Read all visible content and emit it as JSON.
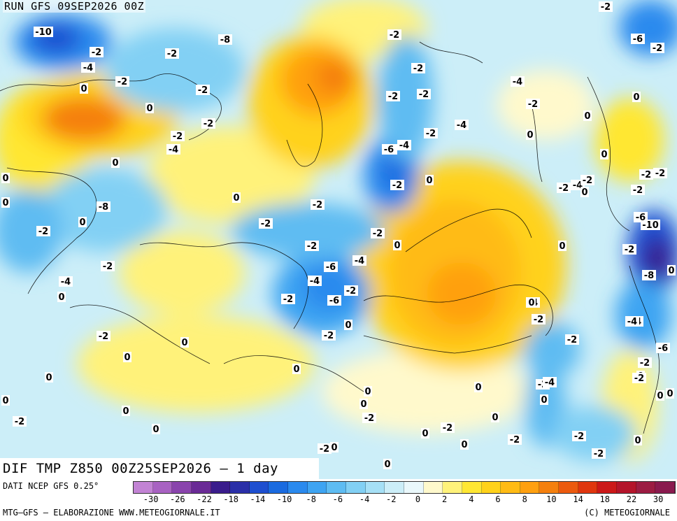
{
  "header": {
    "run": "RUN GFS 09SEP2026 00Z"
  },
  "title": "DIF TMP Z850 00Z25SEP2026 – 1 day",
  "footer": {
    "source": "DATI NCEP GFS 0.25°",
    "credit": "MTG–GFS – ELABORAZIONE WWW.METEOGIORNALE.IT",
    "copyright": "(C) METEOGIORNALE"
  },
  "legend": {
    "colors": [
      "#c283d4",
      "#a862c2",
      "#8a44ad",
      "#6a2a96",
      "#3a1c8c",
      "#2a2fa8",
      "#1e4fd0",
      "#1a6be0",
      "#2a8aee",
      "#3ea4f2",
      "#5ebcf2",
      "#82d0f4",
      "#a6e0f6",
      "#cceef8",
      "#eaf8fb",
      "#fff9cc",
      "#fff27a",
      "#ffe733",
      "#ffd21a",
      "#ffbb14",
      "#ffa010",
      "#f5800e",
      "#ec5a0e",
      "#e0360e",
      "#cc1818",
      "#b4142a",
      "#9c1c42",
      "#8a1a4e"
    ],
    "tick_labels": [
      "-30",
      "-26",
      "-22",
      "-18",
      "-14",
      "-10",
      "-8",
      "-6",
      "-4",
      "-2",
      "0",
      "2",
      "4",
      "6",
      "8",
      "10",
      "14",
      "18",
      "22",
      "30"
    ]
  },
  "map_labels": [
    "-2",
    "-10",
    "-2",
    "-2",
    "-4",
    "-2",
    "-2",
    "0",
    "-2",
    "-2",
    "0",
    "-2",
    "-2",
    "-4",
    "0",
    "-2",
    "-2",
    "-2",
    "-2",
    "-4",
    "-2",
    "-4",
    "-4",
    "-6",
    "-2",
    "0",
    "0",
    "-8",
    "-2",
    "0",
    "-2",
    "-2",
    "-2",
    "-6",
    "-2",
    "-4",
    "0",
    "-2",
    "-4",
    "-4",
    "-2",
    "-6",
    "-2",
    "-2",
    "0",
    "-2",
    "0",
    "0",
    "0",
    "0",
    "0",
    "0",
    "-2",
    "0",
    "0",
    "-2",
    "0",
    "0",
    "-2",
    "0",
    "0",
    "0",
    "0",
    "-2",
    "-2",
    "-4",
    "-2",
    "0",
    "-10",
    "-6",
    "-2",
    "-8",
    "-4",
    "-2",
    "-4",
    "-6",
    "-2",
    "0",
    "-2",
    "0",
    "-4",
    "-2",
    "0",
    "-2",
    "-2",
    "-6",
    "-2",
    "-2",
    "0",
    "0",
    "0",
    "0",
    "-4",
    "0",
    "0",
    "-2",
    "-2",
    "0",
    "0",
    "-2",
    "-2",
    "0",
    "0",
    "0",
    "0",
    "-2",
    "0",
    "-8"
  ]
}
